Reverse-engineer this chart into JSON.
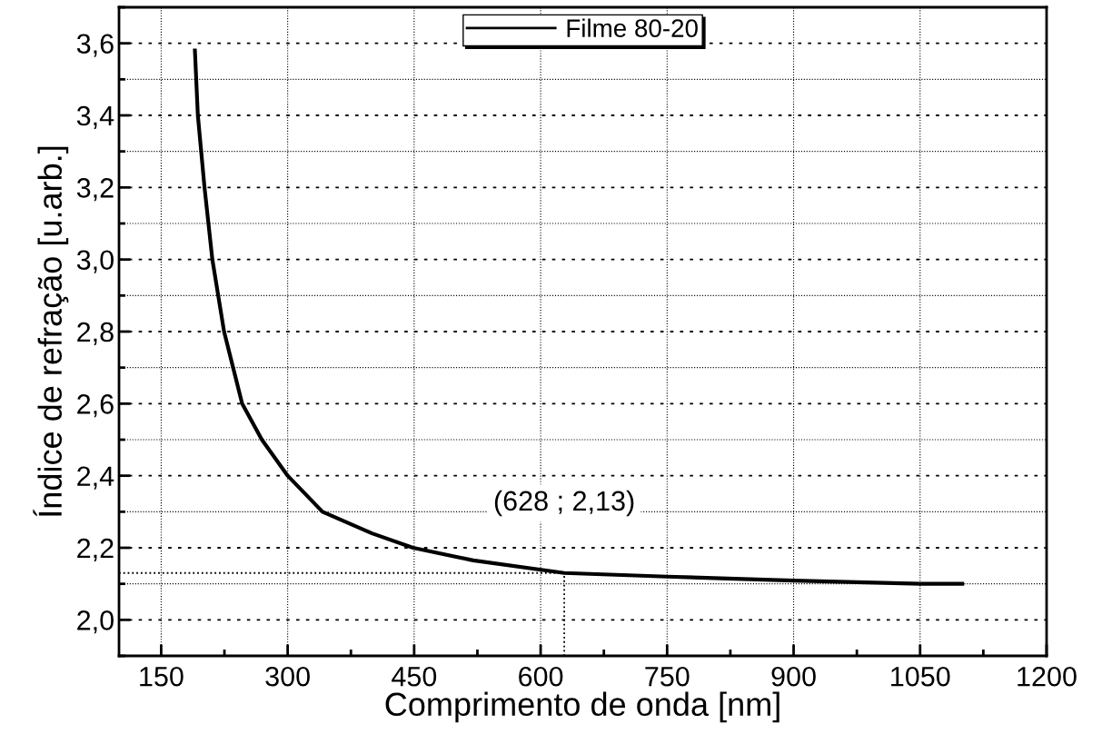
{
  "chart_data": {
    "type": "line",
    "xlabel": "Comprimento de onda [nm]",
    "ylabel": "Índice de refração [u.arb.]",
    "series": [
      {
        "name": "Filme 80-20",
        "color": "#000000",
        "x": [
          190,
          193.5,
          201.4,
          210.7,
          224.6,
          246,
          269.4,
          300,
          341.3,
          400,
          448.7,
          520,
          628,
          750,
          900,
          1050,
          1100
        ],
        "values": [
          3.58,
          3.4,
          3.2,
          3.0,
          2.8,
          2.6,
          2.5,
          2.4,
          2.3,
          2.24,
          2.2,
          2.165,
          2.13,
          2.12,
          2.109,
          2.1,
          2.1
        ]
      }
    ],
    "xlim": [
      100,
      1200
    ],
    "xticks": [
      150,
      300,
      450,
      600,
      750,
      900,
      1050,
      1200
    ],
    "ylim": [
      1.9,
      3.7
    ],
    "yticks": [
      {
        "value": 2.0,
        "label": "2,0"
      },
      {
        "value": 2.2,
        "label": "2,2"
      },
      {
        "value": 2.4,
        "label": "2,4"
      },
      {
        "value": 2.6,
        "label": "2,6"
      },
      {
        "value": 2.8,
        "label": "2,8"
      },
      {
        "value": 3.0,
        "label": "3,0"
      },
      {
        "value": 3.2,
        "label": "3,2"
      },
      {
        "value": 3.4,
        "label": "3,4"
      },
      {
        "value": 3.6,
        "label": "3,6"
      }
    ],
    "ref_lines": [
      {
        "axis": "y",
        "value": 2.13,
        "line_style": "dotted",
        "color": "#000000"
      },
      {
        "axis": "x",
        "value": 628,
        "line_style": "dotted",
        "color": "#000000"
      }
    ],
    "annotations": [
      {
        "text": "(628 ; 2,13)",
        "x": 628,
        "y": 2.13
      }
    ],
    "grid": true,
    "legend": "top",
    "marker": "none",
    "line_style": "solid"
  }
}
